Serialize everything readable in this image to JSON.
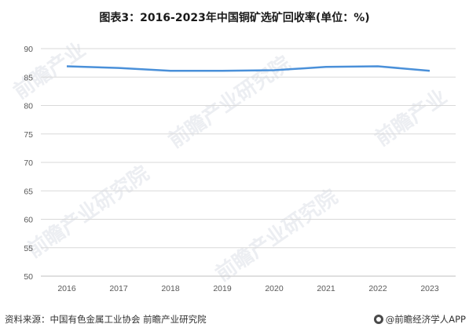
{
  "title": "图表3：2016-2023年中国铜矿选矿回收率(单位：%)",
  "source": "资料来源：中国有色金属工业协会 前瞻产业研究院",
  "brand": "@前瞻经济学人APP",
  "colors": {
    "line": "#4a90d9",
    "grid": "#d9d9d9",
    "axis": "#bfbfbf"
  },
  "chart_data": {
    "type": "line",
    "categories": [
      "2016",
      "2017",
      "2018",
      "2019",
      "2020",
      "2021",
      "2022",
      "2023"
    ],
    "values": [
      86.9,
      86.6,
      86.1,
      86.1,
      86.2,
      86.8,
      86.9,
      86.1
    ],
    "ylim": [
      50,
      90
    ],
    "yticks": [
      50,
      55,
      60,
      65,
      70,
      75,
      80,
      85,
      90
    ],
    "grid": true,
    "legend": false
  }
}
